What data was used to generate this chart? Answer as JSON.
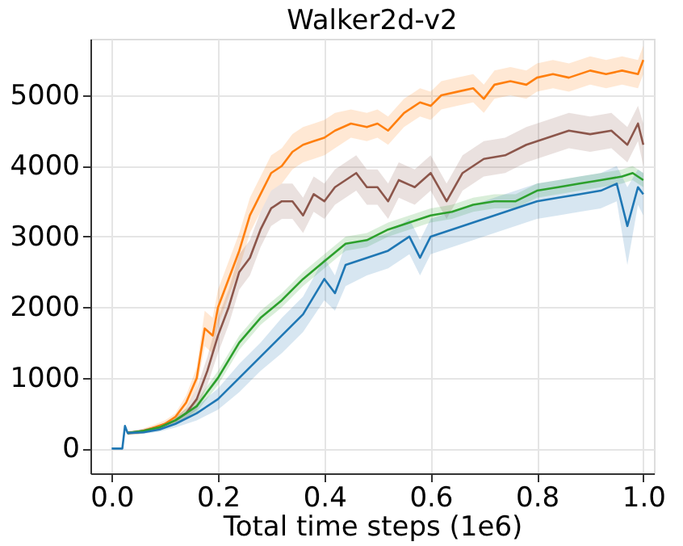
{
  "chart_data": {
    "type": "line",
    "title": "Walker2d-v2",
    "xlabel": "Total time steps (1e6)",
    "xlim": [
      -0.04,
      1.02
    ],
    "ylim": [
      -350,
      5800
    ],
    "xticks": [
      {
        "value": 0,
        "label": "0.0"
      },
      0.2,
      0.4,
      0.6,
      0.8,
      {
        "value": 1,
        "label": "1.0"
      }
    ],
    "yticks": [
      0,
      {
        "value": 1000,
        "label": "1000"
      },
      {
        "value": 2000,
        "label": "2000"
      },
      {
        "value": 3000,
        "label": "3000"
      },
      {
        "value": 4000,
        "label": "4000"
      },
      {
        "value": 5000,
        "label": "5000"
      }
    ],
    "grid": true,
    "series": [
      {
        "color": "#ff7f0e",
        "x": [
          0.03,
          0.05,
          0.08,
          0.1,
          0.12,
          0.14,
          0.16,
          0.175,
          0.19,
          0.2,
          0.22,
          0.24,
          0.26,
          0.28,
          0.3,
          0.32,
          0.34,
          0.36,
          0.38,
          0.4,
          0.42,
          0.45,
          0.48,
          0.5,
          0.52,
          0.55,
          0.58,
          0.6,
          0.62,
          0.65,
          0.68,
          0.7,
          0.72,
          0.75,
          0.78,
          0.8,
          0.83,
          0.86,
          0.9,
          0.93,
          0.96,
          0.99,
          1.0
        ],
        "values": [
          220,
          230,
          300,
          350,
          450,
          650,
          1000,
          1700,
          1600,
          2000,
          2400,
          2800,
          3300,
          3600,
          3900,
          4000,
          4200,
          4300,
          4350,
          4400,
          4500,
          4600,
          4550,
          4600,
          4500,
          4750,
          4900,
          4850,
          5000,
          5050,
          5100,
          4950,
          5150,
          5200,
          5150,
          5250,
          5300,
          5250,
          5350,
          5300,
          5350,
          5300,
          5500
        ],
        "lower": [
          200,
          200,
          260,
          300,
          400,
          550,
          850,
          1450,
          1350,
          1750,
          2150,
          2550,
          3050,
          3350,
          3650,
          3750,
          3950,
          4050,
          4100,
          4150,
          4250,
          4400,
          4350,
          4400,
          4300,
          4550,
          4700,
          4650,
          4800,
          4850,
          4900,
          4750,
          4950,
          5000,
          4950,
          5050,
          5100,
          5050,
          5150,
          5100,
          5150,
          5100,
          5300
        ],
        "upper": [
          240,
          260,
          340,
          400,
          500,
          750,
          1150,
          1950,
          1850,
          2250,
          2650,
          3050,
          3550,
          3850,
          4150,
          4250,
          4450,
          4550,
          4600,
          4650,
          4750,
          4800,
          4750,
          4800,
          4700,
          4950,
          5100,
          5050,
          5200,
          5250,
          5300,
          5150,
          5350,
          5400,
          5350,
          5450,
          5500,
          5450,
          5550,
          5500,
          5550,
          5500,
          5700
        ]
      },
      {
        "color": "#8c564b",
        "x": [
          0.03,
          0.06,
          0.09,
          0.12,
          0.14,
          0.16,
          0.18,
          0.2,
          0.22,
          0.24,
          0.26,
          0.28,
          0.3,
          0.32,
          0.34,
          0.36,
          0.38,
          0.4,
          0.42,
          0.44,
          0.46,
          0.48,
          0.5,
          0.52,
          0.54,
          0.57,
          0.6,
          0.63,
          0.66,
          0.7,
          0.74,
          0.78,
          0.82,
          0.86,
          0.9,
          0.94,
          0.97,
          0.99,
          1.0
        ],
        "values": [
          220,
          250,
          300,
          400,
          500,
          700,
          1100,
          1600,
          2000,
          2500,
          2700,
          3100,
          3400,
          3500,
          3500,
          3300,
          3600,
          3500,
          3700,
          3800,
          3900,
          3700,
          3700,
          3500,
          3800,
          3700,
          3900,
          3500,
          3900,
          4100,
          4150,
          4300,
          4400,
          4500,
          4450,
          4500,
          4300,
          4600,
          4300
        ],
        "lower": [
          190,
          220,
          270,
          350,
          430,
          550,
          900,
          1350,
          1750,
          2250,
          2450,
          2850,
          3150,
          3250,
          3250,
          3050,
          3350,
          3250,
          3450,
          3550,
          3650,
          3450,
          3450,
          3250,
          3550,
          3450,
          3650,
          3250,
          3650,
          3850,
          3900,
          4050,
          4150,
          4250,
          4200,
          4250,
          4050,
          4350,
          4000
        ],
        "upper": [
          250,
          280,
          330,
          450,
          570,
          850,
          1300,
          1850,
          2250,
          2750,
          2950,
          3350,
          3650,
          3750,
          3750,
          3550,
          3850,
          3750,
          3950,
          4050,
          4150,
          3950,
          3950,
          3750,
          4050,
          3950,
          4150,
          3750,
          4150,
          4350,
          4400,
          4550,
          4650,
          4750,
          4700,
          4750,
          4550,
          4850,
          4600
        ]
      },
      {
        "color": "#2ca02c",
        "x": [
          0.03,
          0.06,
          0.09,
          0.12,
          0.16,
          0.2,
          0.24,
          0.28,
          0.32,
          0.36,
          0.4,
          0.44,
          0.48,
          0.52,
          0.56,
          0.6,
          0.64,
          0.68,
          0.72,
          0.76,
          0.8,
          0.84,
          0.88,
          0.92,
          0.96,
          0.98,
          1.0
        ],
        "values": [
          220,
          250,
          300,
          400,
          600,
          1000,
          1500,
          1850,
          2100,
          2400,
          2650,
          2900,
          2950,
          3100,
          3200,
          3300,
          3350,
          3450,
          3500,
          3500,
          3650,
          3700,
          3750,
          3800,
          3850,
          3900,
          3800
        ],
        "lower": [
          200,
          230,
          270,
          360,
          520,
          900,
          1400,
          1750,
          2000,
          2300,
          2550,
          2800,
          2850,
          3000,
          3100,
          3200,
          3250,
          3350,
          3400,
          3400,
          3550,
          3600,
          3650,
          3700,
          3750,
          3800,
          3700
        ],
        "upper": [
          240,
          270,
          330,
          440,
          680,
          1100,
          1600,
          1950,
          2200,
          2500,
          2750,
          3000,
          3050,
          3200,
          3300,
          3400,
          3450,
          3550,
          3600,
          3600,
          3750,
          3800,
          3850,
          3900,
          3950,
          4000,
          3900
        ]
      },
      {
        "color": "#1f77b4",
        "x": [
          0,
          0.02,
          0.025,
          0.03,
          0.06,
          0.09,
          0.12,
          0.16,
          0.2,
          0.24,
          0.28,
          0.32,
          0.36,
          0.4,
          0.42,
          0.44,
          0.48,
          0.52,
          0.56,
          0.58,
          0.6,
          0.64,
          0.68,
          0.72,
          0.76,
          0.8,
          0.84,
          0.88,
          0.92,
          0.95,
          0.97,
          0.99,
          1.0
        ],
        "values": [
          0,
          0,
          320,
          220,
          230,
          270,
          350,
          500,
          700,
          1000,
          1300,
          1600,
          1900,
          2400,
          2200,
          2600,
          2700,
          2800,
          3000,
          2700,
          3000,
          3100,
          3200,
          3300,
          3400,
          3500,
          3550,
          3600,
          3650,
          3750,
          3150,
          3700,
          3600
        ],
        "lower": [
          0,
          0,
          300,
          200,
          210,
          240,
          300,
          400,
          550,
          800,
          1100,
          1350,
          1650,
          2100,
          1950,
          2300,
          2450,
          2550,
          2750,
          2450,
          2750,
          2850,
          2950,
          3050,
          3150,
          3250,
          3300,
          3350,
          3400,
          3500,
          2600,
          3450,
          3300
        ],
        "upper": [
          0,
          0,
          340,
          240,
          250,
          300,
          400,
          600,
          850,
          1200,
          1500,
          1850,
          2150,
          2700,
          2450,
          2900,
          2950,
          3050,
          3250,
          2950,
          3250,
          3350,
          3450,
          3550,
          3650,
          3750,
          3800,
          3850,
          3900,
          4000,
          3700,
          3950,
          3900
        ]
      }
    ]
  }
}
